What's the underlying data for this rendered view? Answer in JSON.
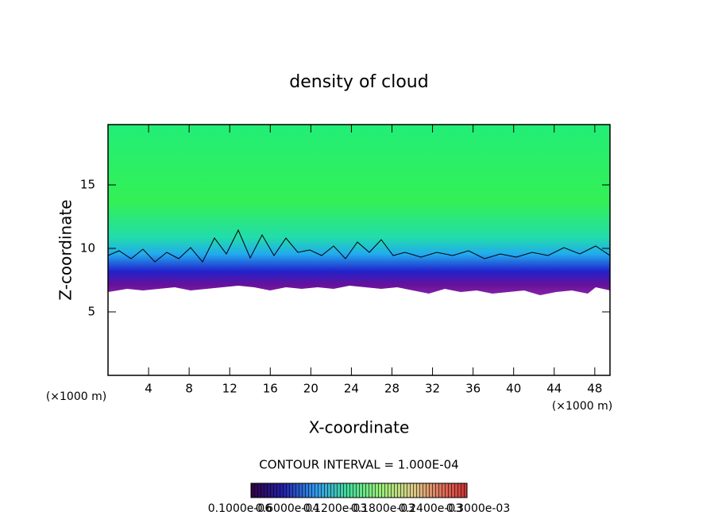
{
  "chart_data": {
    "type": "contour",
    "title": "density of cloud",
    "x_label": "X-coordinate",
    "y_label": "Z-coordinate",
    "x_unit": "(×1000 m)",
    "y_unit": "(×1000 m)",
    "xlim": [
      0,
      49.5
    ],
    "xticks": [
      4,
      8,
      12,
      16,
      20,
      24,
      28,
      32,
      36,
      40,
      44,
      48
    ],
    "ylim": [
      0,
      19.75
    ],
    "yticks": [
      5,
      10,
      15
    ],
    "contour_interval_text": "CONTOUR INTERVAL = 1.000E-04",
    "colorbar_labels": [
      "0.1000e-06",
      "0.6000e-04",
      "0.1200e-03",
      "0.1800e-03",
      "0.2400e-03",
      "0.3000e-03"
    ]
  }
}
